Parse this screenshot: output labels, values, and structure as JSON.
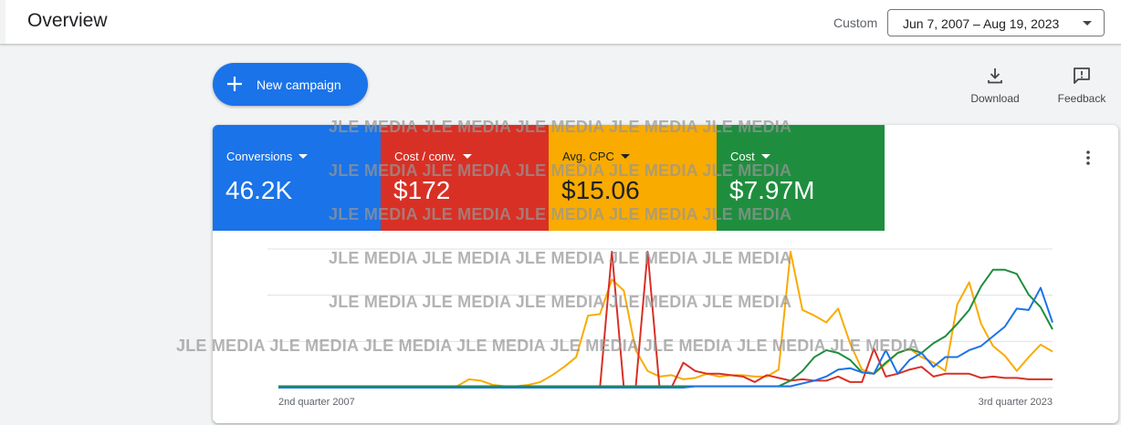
{
  "header": {
    "title": "Overview",
    "range_label": "Custom",
    "date_range": "Jun 7, 2007 – Aug 19, 2023"
  },
  "actions": {
    "new_campaign": "New campaign",
    "download": "Download",
    "feedback": "Feedback"
  },
  "metrics": [
    {
      "name": "Conversions",
      "value": "46.2K",
      "color": "#1a73e8"
    },
    {
      "name": "Cost / conv.",
      "value": "$172",
      "color": "#d93025"
    },
    {
      "name": "Avg. CPC",
      "value": "$15.06",
      "color": "#f9ab00"
    },
    {
      "name": "Cost",
      "value": "$7.97M",
      "color": "#1e8e3e"
    }
  ],
  "watermark": "JLE MEDIA",
  "chart_data": {
    "type": "line",
    "x_tick_labels": [
      "2nd quarter 2007",
      "3rd quarter 2023"
    ],
    "x": [
      0,
      1,
      2,
      3,
      4,
      5,
      6,
      7,
      8,
      9,
      10,
      11,
      12,
      13,
      14,
      15,
      16,
      17,
      18,
      19,
      20,
      21,
      22,
      23,
      24,
      25,
      26,
      27,
      28,
      29,
      30,
      31,
      32,
      33,
      34,
      35,
      36,
      37,
      38,
      39,
      40,
      41,
      42,
      43,
      44,
      45,
      46,
      47,
      48,
      49,
      50,
      51,
      52,
      53,
      54,
      55,
      56,
      57,
      58,
      59,
      60,
      61,
      62,
      63,
      64,
      65
    ],
    "grid": true,
    "series": [
      {
        "color": "#f9ab00",
        "values": [
          1,
          1,
          1,
          1,
          1,
          1,
          1,
          1,
          1,
          1,
          1,
          1,
          1,
          1,
          1,
          1,
          6,
          5,
          2,
          1,
          1,
          2,
          4,
          9,
          15,
          22,
          52,
          53,
          78,
          70,
          27,
          12,
          8,
          9,
          6,
          7,
          10,
          8,
          9,
          9,
          8,
          8,
          13,
          98,
          56,
          52,
          47,
          57,
          32,
          13,
          10,
          17,
          25,
          28,
          22,
          18,
          12,
          60,
          76,
          46,
          30,
          23,
          12,
          22,
          31,
          26
        ]
      },
      {
        "color": "#d93025",
        "values": [
          0,
          0,
          0,
          0,
          0,
          0,
          0,
          0,
          0,
          0,
          0,
          0,
          0,
          0,
          0,
          0,
          0,
          0,
          0,
          0,
          0,
          0,
          0,
          0,
          0,
          0,
          0,
          0,
          98,
          0,
          0,
          98,
          0,
          0,
          18,
          12,
          10,
          10,
          9,
          8,
          4,
          9,
          7,
          5,
          6,
          5,
          5,
          8,
          4,
          4,
          28,
          8,
          10,
          13,
          15,
          8,
          10,
          10,
          10,
          7,
          8,
          7,
          7,
          6,
          6,
          6
        ]
      },
      {
        "color": "#1e8e3e",
        "values": [
          1,
          1,
          1,
          1,
          1,
          1,
          1,
          1,
          1,
          1,
          1,
          1,
          1,
          1,
          1,
          1,
          1,
          1,
          1,
          1,
          1,
          1,
          1,
          1,
          1,
          1,
          1,
          1,
          1,
          1,
          1,
          1,
          1,
          1,
          1,
          1,
          1,
          1,
          1,
          1,
          1,
          1,
          1,
          5,
          12,
          22,
          27,
          25,
          20,
          11,
          10,
          18,
          25,
          28,
          25,
          32,
          37,
          46,
          56,
          73,
          85,
          85,
          82,
          67,
          58,
          42
        ]
      },
      {
        "color": "#1a73e8",
        "values": [
          0,
          0,
          0,
          0,
          0,
          0,
          0,
          0,
          0,
          0,
          0,
          0,
          0,
          0,
          0,
          0,
          0,
          0,
          0,
          0,
          0,
          0,
          0,
          0,
          0,
          0,
          0,
          0,
          0,
          0,
          0,
          0,
          0,
          0,
          0,
          1,
          1,
          1,
          1,
          1,
          1,
          1,
          1,
          1,
          3,
          5,
          8,
          13,
          14,
          11,
          10,
          27,
          10,
          20,
          25,
          15,
          22,
          22,
          27,
          30,
          37,
          44,
          57,
          56,
          72,
          47
        ]
      }
    ]
  }
}
